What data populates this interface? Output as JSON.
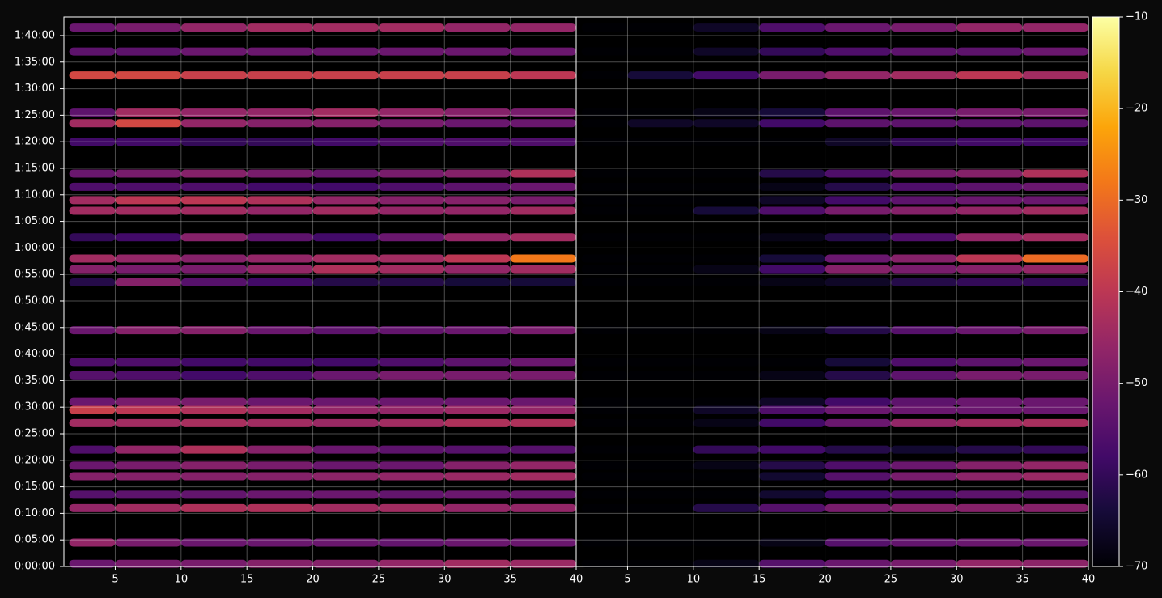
{
  "chart_data": {
    "type": "heatmap",
    "x_bins": [
      1.5,
      5,
      10,
      15,
      20,
      25,
      30,
      35,
      40
    ],
    "y": [
      0.5,
      4.5,
      11,
      13.5,
      17,
      19,
      22,
      27,
      29.5,
      31,
      36,
      38.5,
      44.5,
      53.5,
      56,
      58,
      62,
      67,
      69,
      71.5,
      74,
      80,
      83.5,
      85.5,
      92.5,
      97,
      101.5
    ],
    "xlim": [
      1.1,
      40
    ],
    "xticks": [
      5,
      10,
      15,
      20,
      25,
      30,
      35,
      40
    ],
    "ylim": [
      0,
      103.5
    ],
    "yticks": [
      {
        "value": 0,
        "label": "0:00:00"
      },
      {
        "value": 5,
        "label": "0:05:00"
      },
      {
        "value": 10,
        "label": "0:10:00"
      },
      {
        "value": 15,
        "label": "0:15:00"
      },
      {
        "value": 20,
        "label": "0:20:00"
      },
      {
        "value": 25,
        "label": "0:25:00"
      },
      {
        "value": 30,
        "label": "0:30:00"
      },
      {
        "value": 35,
        "label": "0:35:00"
      },
      {
        "value": 40,
        "label": "0:40:00"
      },
      {
        "value": 45,
        "label": "0:45:00"
      },
      {
        "value": 50,
        "label": "0:50:00"
      },
      {
        "value": 55,
        "label": "0:55:00"
      },
      {
        "value": 60,
        "label": "1:00:00"
      },
      {
        "value": 65,
        "label": "1:05:00"
      },
      {
        "value": 70,
        "label": "1:10:00"
      },
      {
        "value": 75,
        "label": "1:15:00"
      },
      {
        "value": 80,
        "label": "1:20:00"
      },
      {
        "value": 85,
        "label": "1:25:00"
      },
      {
        "value": 90,
        "label": "1:30:00"
      },
      {
        "value": 95,
        "label": "1:35:00"
      },
      {
        "value": 100,
        "label": "1:40:00"
      }
    ],
    "grid": true,
    "colormap": "inferno",
    "clim": [
      -70,
      -10
    ],
    "cticks": [
      {
        "value": -70,
        "label": "−70"
      },
      {
        "value": -60,
        "label": "−60"
      },
      {
        "value": -50,
        "label": "−50"
      },
      {
        "value": -40,
        "label": "−40"
      },
      {
        "value": -30,
        "label": "−30"
      },
      {
        "value": -20,
        "label": "−20"
      },
      {
        "value": -10,
        "label": "−10"
      }
    ],
    "series": [
      {
        "values": [
          [
            -52,
            -50,
            -50,
            -48,
            -48,
            -46,
            -44,
            -45
          ],
          [
            -46,
            -50,
            -52,
            -52,
            -52,
            -53,
            -52,
            -52
          ],
          [
            -46,
            -44,
            -42,
            -42,
            -44,
            -44,
            -46,
            -46
          ],
          [
            -55,
            -54,
            -53,
            -52,
            -52,
            -53,
            -52,
            -52
          ],
          [
            -48,
            -48,
            -48,
            -48,
            -47,
            -46,
            -45,
            -44
          ],
          [
            -52,
            -50,
            -48,
            -50,
            -52,
            -52,
            -48,
            -46
          ],
          [
            -56,
            -46,
            -42,
            -48,
            -52,
            -54,
            -55,
            -55
          ],
          [
            -44,
            -44,
            -43,
            -44,
            -45,
            -44,
            -42,
            -42
          ],
          [
            -38,
            -40,
            -42,
            -44,
            -46,
            -46,
            -45,
            -46
          ],
          [
            -52,
            -50,
            -50,
            -52,
            -52,
            -52,
            -52,
            -52
          ],
          [
            -55,
            -56,
            -58,
            -56,
            -52,
            -50,
            -50,
            -50
          ],
          [
            -56,
            -56,
            -58,
            -58,
            -58,
            -56,
            -54,
            -52
          ],
          [
            -52,
            -48,
            -48,
            -52,
            -54,
            -53,
            -52,
            -50
          ],
          [
            -62,
            -48,
            -55,
            -58,
            -62,
            -62,
            -64,
            -64
          ],
          [
            -48,
            -50,
            -50,
            -46,
            -42,
            -44,
            -46,
            -44
          ],
          [
            -44,
            -46,
            -48,
            -46,
            -44,
            -44,
            -40,
            -28
          ],
          [
            -60,
            -58,
            -48,
            -54,
            -58,
            -52,
            -46,
            -44
          ],
          [
            -44,
            -44,
            -44,
            -46,
            -44,
            -46,
            -46,
            -44
          ],
          [
            -44,
            -40,
            -40,
            -42,
            -46,
            -48,
            -48,
            -50
          ],
          [
            -56,
            -56,
            -56,
            -58,
            -58,
            -56,
            -54,
            -52
          ],
          [
            -52,
            -50,
            -48,
            -50,
            -52,
            -50,
            -48,
            -42
          ],
          [
            -58,
            -58,
            -60,
            -60,
            -58,
            -56,
            -56,
            -56
          ],
          [
            -44,
            -36,
            -46,
            -48,
            -48,
            -50,
            -52,
            -52
          ],
          [
            -54,
            -44,
            -46,
            -46,
            -44,
            -46,
            -48,
            -50
          ],
          [
            -36,
            -36,
            -38,
            -38,
            -38,
            -38,
            -38,
            -40
          ],
          [
            -54,
            -54,
            -52,
            -52,
            -52,
            -52,
            -52,
            -52
          ],
          [
            -52,
            -50,
            -46,
            -44,
            -44,
            -44,
            -46,
            -46
          ]
        ]
      },
      {
        "values": [
          [
            -70,
            -70,
            -68,
            -55,
            -52,
            -50,
            -46,
            -47
          ],
          [
            -70,
            -70,
            -70,
            -68,
            -55,
            -53,
            -52,
            -52
          ],
          [
            -70,
            -70,
            -62,
            -55,
            -50,
            -48,
            -48,
            -48
          ],
          [
            -70,
            -70,
            -70,
            -65,
            -58,
            -56,
            -54,
            -54
          ],
          [
            -70,
            -70,
            -70,
            -65,
            -55,
            -50,
            -47,
            -45
          ],
          [
            -70,
            -70,
            -68,
            -62,
            -56,
            -52,
            -48,
            -46
          ],
          [
            -70,
            -70,
            -60,
            -58,
            -62,
            -65,
            -62,
            -60
          ],
          [
            -70,
            -70,
            -68,
            -58,
            -52,
            -46,
            -44,
            -43
          ],
          [
            -70,
            -70,
            -66,
            -56,
            -52,
            -52,
            -52,
            -52
          ],
          [
            -70,
            -70,
            -70,
            -66,
            -58,
            -54,
            -52,
            -52
          ],
          [
            -70,
            -70,
            -70,
            -68,
            -62,
            -54,
            -50,
            -50
          ],
          [
            -70,
            -70,
            -70,
            -70,
            -64,
            -56,
            -54,
            -52
          ],
          [
            -70,
            -70,
            -70,
            -68,
            -62,
            -55,
            -52,
            -50
          ],
          [
            -70,
            -70,
            -70,
            -68,
            -66,
            -62,
            -60,
            -60
          ],
          [
            -70,
            -70,
            -68,
            -58,
            -48,
            -50,
            -48,
            -46
          ],
          [
            -70,
            -70,
            -70,
            -64,
            -52,
            -48,
            -40,
            -30
          ],
          [
            -70,
            -70,
            -70,
            -68,
            -62,
            -56,
            -46,
            -44
          ],
          [
            -70,
            -70,
            -64,
            -56,
            -50,
            -48,
            -46,
            -44
          ],
          [
            -70,
            -70,
            -70,
            -66,
            -58,
            -54,
            -52,
            -52
          ],
          [
            -70,
            -70,
            -70,
            -68,
            -62,
            -56,
            -54,
            -52
          ],
          [
            -70,
            -70,
            -70,
            -62,
            -56,
            -50,
            -48,
            -42
          ],
          [
            -70,
            -70,
            -70,
            -70,
            -66,
            -60,
            -58,
            -58
          ],
          [
            -70,
            -66,
            -66,
            -58,
            -54,
            -54,
            -54,
            -54
          ],
          [
            -70,
            -70,
            -68,
            -64,
            -54,
            -52,
            -50,
            -50
          ],
          [
            -70,
            -64,
            -58,
            -50,
            -46,
            -44,
            -40,
            -44
          ],
          [
            -70,
            -70,
            -66,
            -60,
            -56,
            -54,
            -54,
            -52
          ],
          [
            -70,
            -70,
            -66,
            -56,
            -52,
            -50,
            -46,
            -46
          ]
        ]
      }
    ]
  }
}
